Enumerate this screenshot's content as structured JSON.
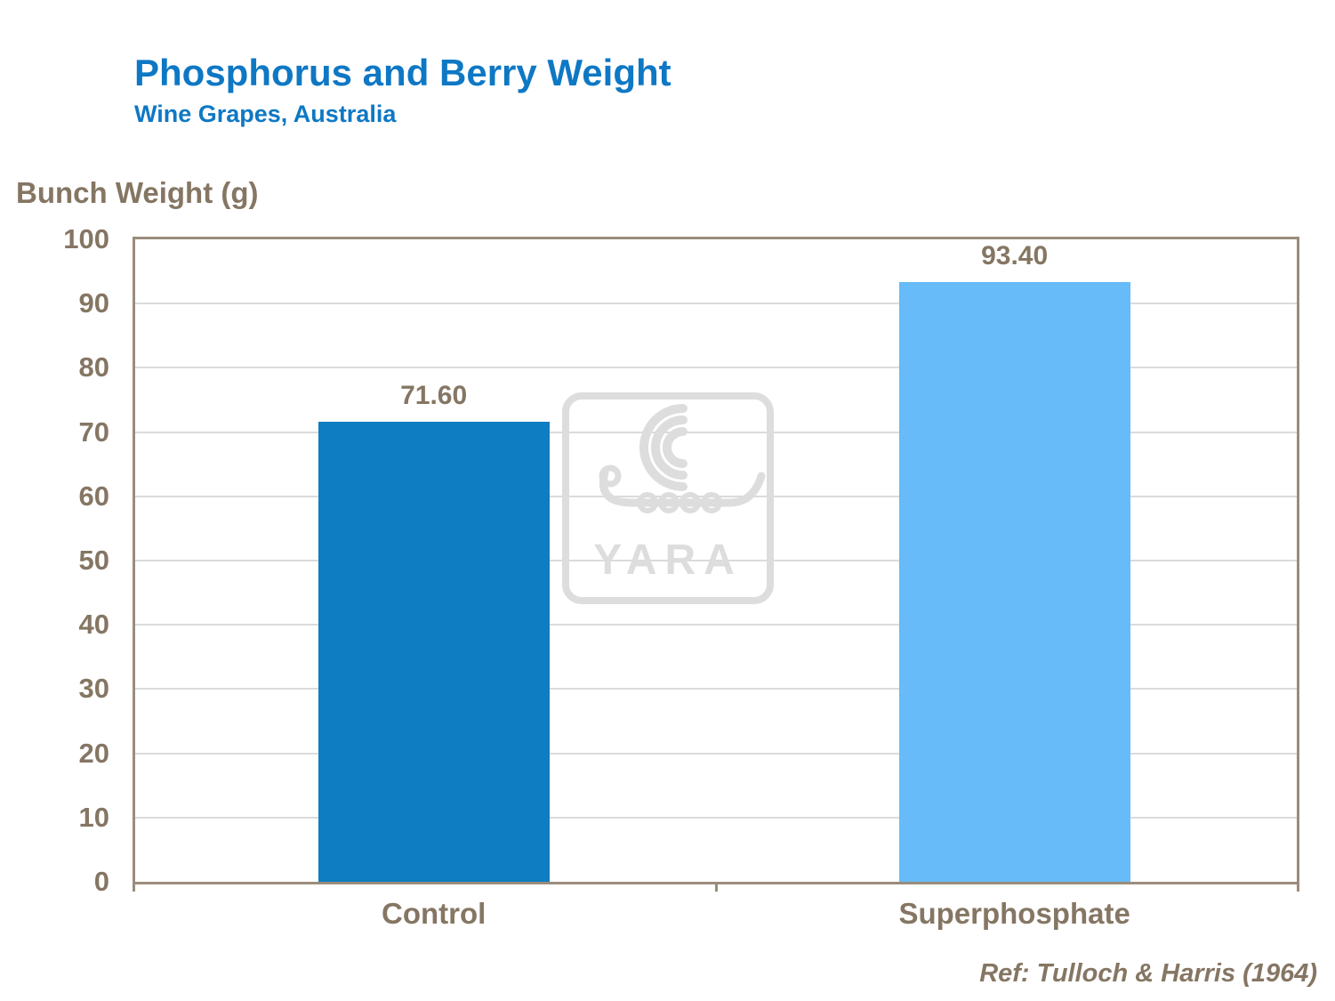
{
  "header": {
    "title": "Phosphorus and Berry Weight",
    "subtitle": "Wine Grapes, Australia"
  },
  "watermark": {
    "name": "yara-logo",
    "text": "YARA"
  },
  "colors": {
    "title_blue": "#0E78C4",
    "axis_brown": "#857663",
    "plot_border": "#9A8C7C",
    "gridline": "#DBDBDB",
    "watermark_gray": "#DDDDDD",
    "bar_control": "#0E7DC2",
    "bar_superphosphate": "#66BBF8"
  },
  "chart_data": {
    "type": "bar",
    "title": "Phosphorus and Berry Weight",
    "subtitle": "Wine Grapes, Australia",
    "ylabel": "Bunch Weight (g)",
    "xlabel": "",
    "categories": [
      "Control",
      "Superphosphate"
    ],
    "values": [
      71.6,
      93.4
    ],
    "value_labels": [
      "71.60",
      "93.40"
    ],
    "bar_colors": [
      "#0E7DC2",
      "#66BBF8"
    ],
    "ylim": [
      0,
      100
    ],
    "ytick_step": 10,
    "grid": true,
    "legend": false,
    "reference": "Ref: Tulloch & Harris (1964)"
  }
}
